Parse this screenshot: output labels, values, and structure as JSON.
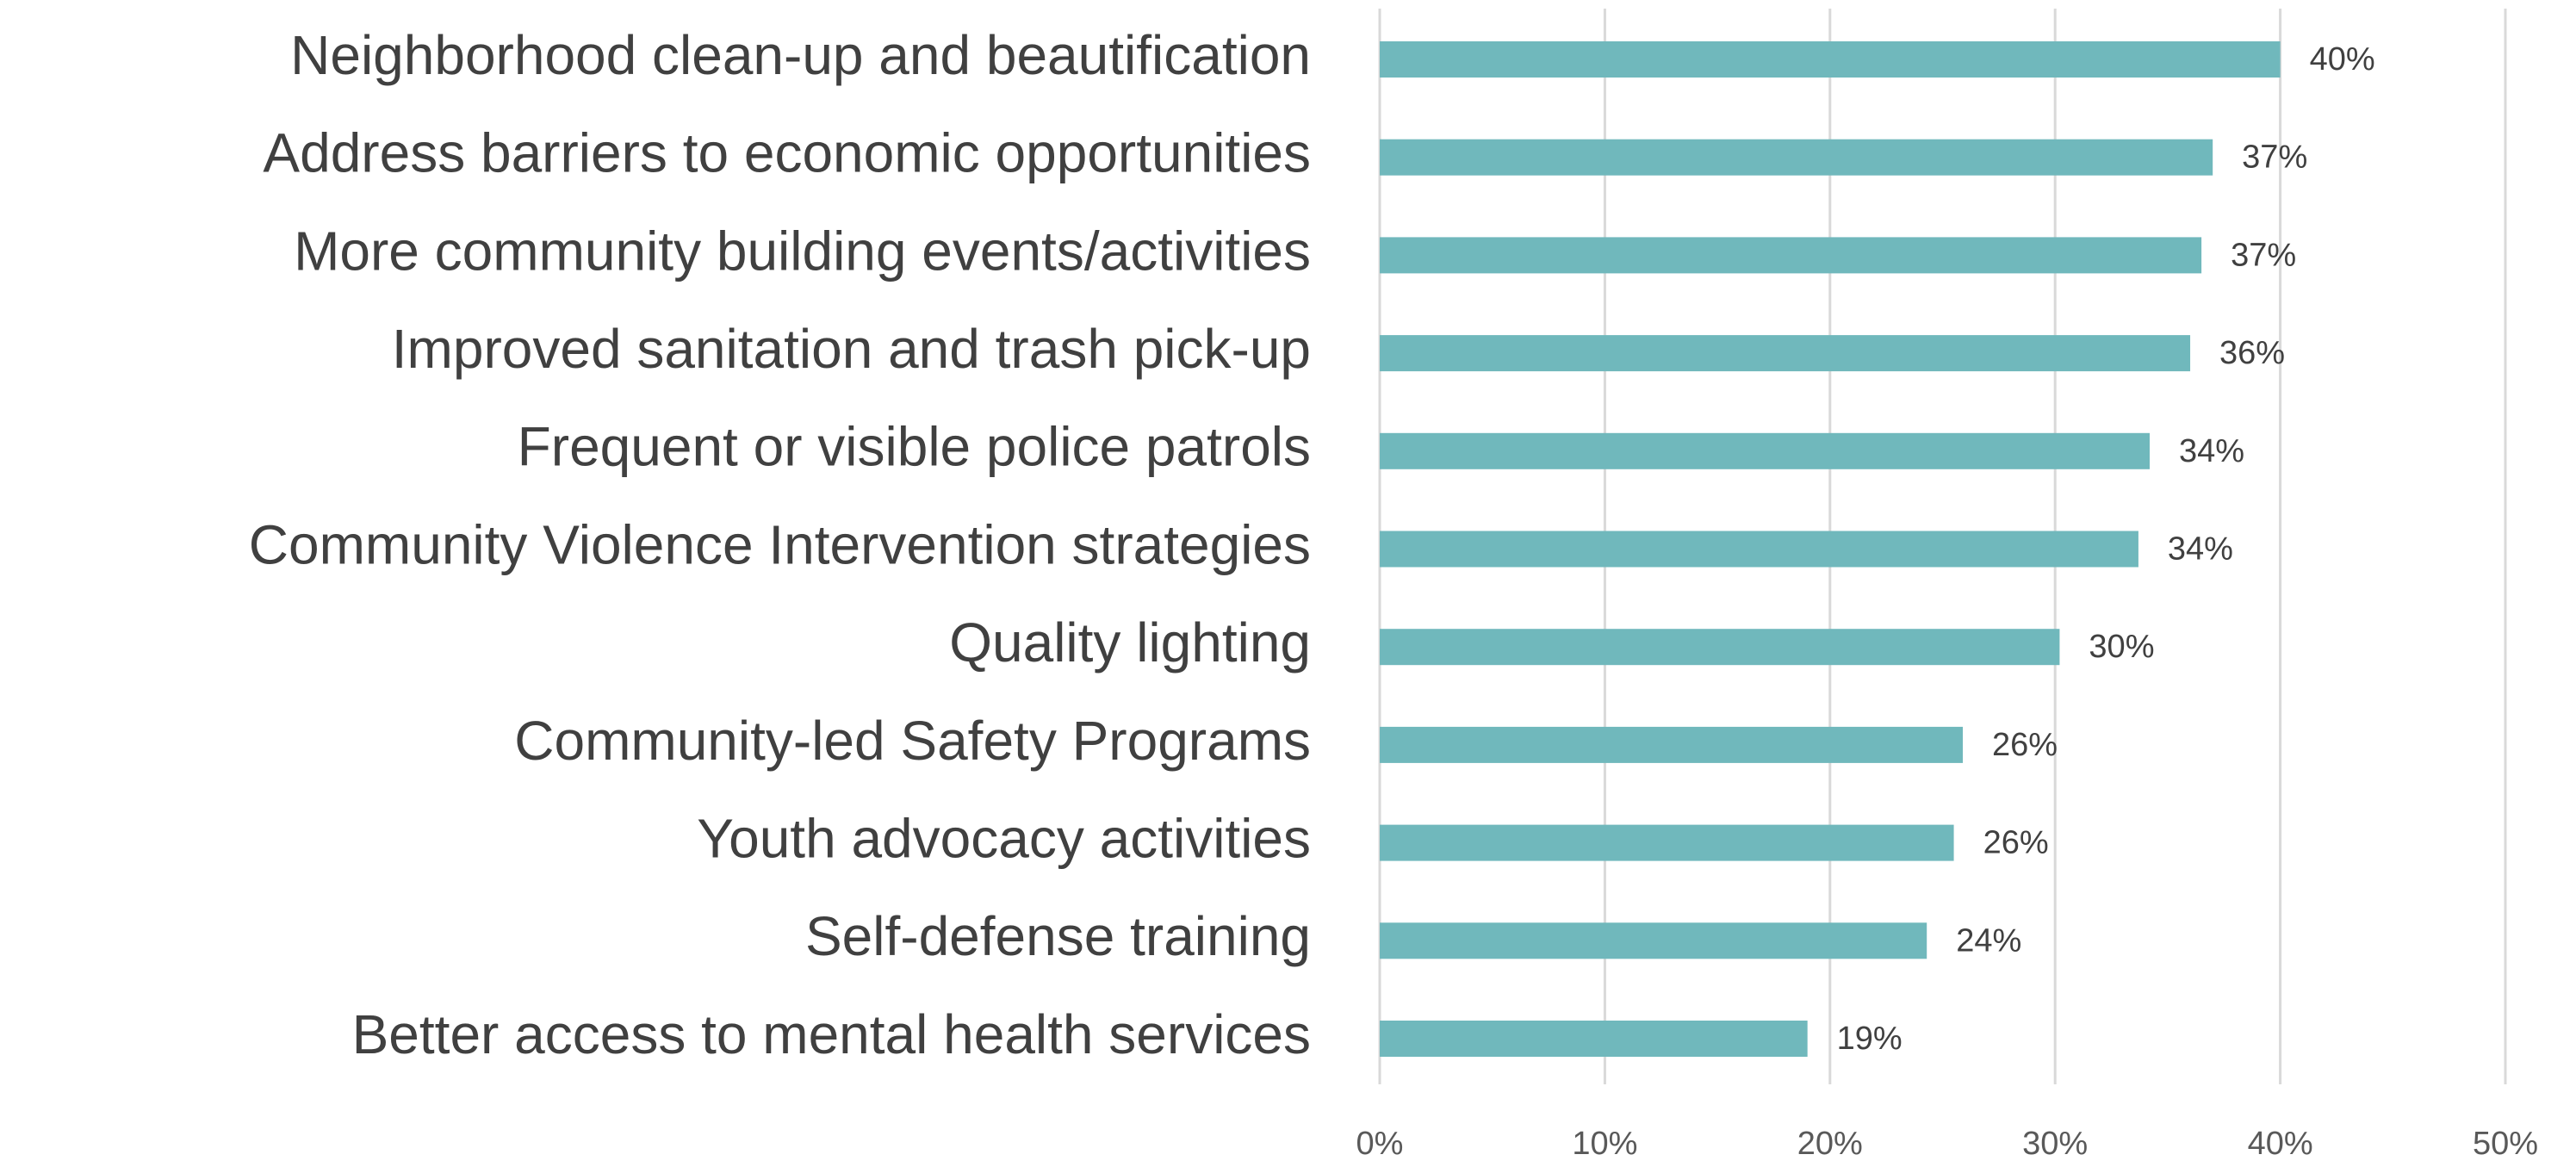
{
  "chart_data": {
    "type": "bar",
    "orientation": "horizontal",
    "categories": [
      "Neighborhood clean-up and beautification",
      "Address barriers to economic opportunities",
      "More community building events/activities",
      "Improved sanitation and trash pick-up",
      "Frequent or visible police patrols",
      "Community Violence Intervention strategies",
      "Quality lighting",
      "Community-led Safety Programs",
      "Youth advocacy activities",
      "Self-defense training",
      "Better access to mental health services"
    ],
    "values": [
      40.0,
      37.0,
      36.5,
      36.0,
      34.2,
      33.7,
      30.2,
      25.9,
      25.5,
      24.3,
      19.0
    ],
    "value_labels": [
      "40%",
      "37%",
      "37%",
      "36%",
      "34%",
      "34%",
      "30%",
      "26%",
      "26%",
      "24%",
      "19%"
    ],
    "color": "#70b8bc",
    "xlim": [
      0,
      50
    ],
    "xticks": [
      {
        "value": 0,
        "label": "0%"
      },
      {
        "value": 10,
        "label": "10%"
      },
      {
        "value": 20,
        "label": "20%"
      },
      {
        "value": 30,
        "label": "30%"
      },
      {
        "value": 40,
        "label": "40%"
      },
      {
        "value": 50,
        "label": "50%"
      }
    ],
    "grid": true
  }
}
